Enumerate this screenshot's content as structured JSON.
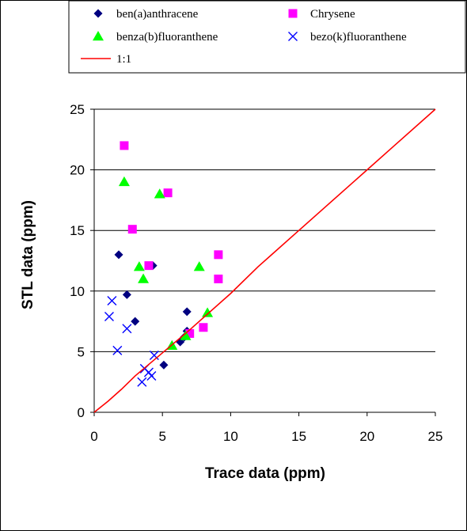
{
  "chart_data": {
    "type": "scatter",
    "xlabel": "Trace data (ppm)",
    "ylabel": "STL data (ppm)",
    "xlim": [
      0,
      25
    ],
    "ylim": [
      0,
      25
    ],
    "xticks": [
      0,
      5,
      10,
      15,
      20,
      25
    ],
    "yticks": [
      0,
      5,
      10,
      15,
      20,
      25
    ],
    "grid": "horizontal",
    "legend_position": "top",
    "series": [
      {
        "name": "ben(a)anthracene",
        "marker": "diamond",
        "color": "#000080",
        "points": [
          [
            1.8,
            13.0
          ],
          [
            2.4,
            9.7
          ],
          [
            3.0,
            7.5
          ],
          [
            4.3,
            12.1
          ],
          [
            5.1,
            3.9
          ],
          [
            6.3,
            5.8
          ],
          [
            6.6,
            6.2
          ],
          [
            6.8,
            6.7
          ],
          [
            6.8,
            8.3
          ]
        ]
      },
      {
        "name": "Chrysene",
        "marker": "square",
        "color": "#ff00ff",
        "points": [
          [
            2.2,
            22.0
          ],
          [
            2.8,
            15.1
          ],
          [
            4.0,
            12.1
          ],
          [
            5.4,
            18.1
          ],
          [
            7.0,
            6.5
          ],
          [
            8.0,
            7.0
          ],
          [
            9.1,
            11.0
          ],
          [
            9.1,
            13.0
          ]
        ]
      },
      {
        "name": "benza(b)fluoranthene",
        "marker": "triangle",
        "color": "#00ff00",
        "points": [
          [
            2.2,
            19.0
          ],
          [
            3.3,
            12.0
          ],
          [
            3.6,
            11.0
          ],
          [
            4.8,
            18.0
          ],
          [
            5.7,
            5.5
          ],
          [
            6.7,
            6.3
          ],
          [
            7.7,
            12.0
          ],
          [
            8.3,
            8.2
          ]
        ]
      },
      {
        "name": "bezo(k)fluoranthene",
        "marker": "x",
        "color": "#0000ff",
        "points": [
          [
            1.1,
            7.9
          ],
          [
            1.3,
            9.2
          ],
          [
            1.7,
            5.1
          ],
          [
            2.4,
            6.9
          ],
          [
            3.5,
            2.5
          ],
          [
            3.7,
            3.6
          ],
          [
            4.0,
            3.3
          ],
          [
            4.2,
            3.0
          ],
          [
            4.4,
            4.7
          ]
        ]
      },
      {
        "name": "1:1",
        "marker": "line",
        "color": "#ff0000",
        "points": [
          [
            0,
            0
          ],
          [
            1,
            0.9
          ],
          [
            2,
            1.9
          ],
          [
            3,
            3.0
          ],
          [
            5,
            4.9
          ],
          [
            7,
            6.8
          ],
          [
            10,
            9.8
          ],
          [
            12,
            12.0
          ],
          [
            13,
            13.0
          ],
          [
            15,
            15.0
          ],
          [
            17,
            17.0
          ],
          [
            19,
            19.0
          ],
          [
            20,
            20.0
          ],
          [
            22,
            22.0
          ],
          [
            25,
            25.0
          ]
        ]
      }
    ]
  }
}
